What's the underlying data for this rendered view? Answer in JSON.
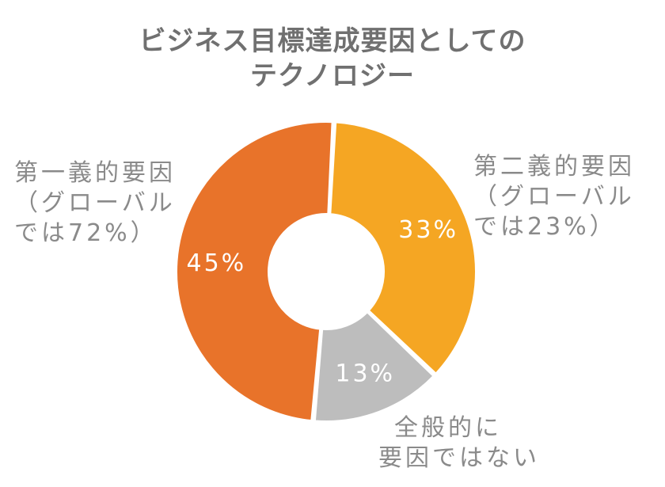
{
  "chart_data": {
    "type": "pie",
    "title_lines": [
      "ビジネス目標達成要因としての",
      "テクノロジー"
    ],
    "slices": [
      {
        "name_lines": [
          "第一義的要因",
          "（グローバル",
          "では72%）"
        ],
        "value": 45,
        "value_label": "45%",
        "color": "#E8732A"
      },
      {
        "name_lines": [
          "第二義的要因",
          "（グローバル",
          "では23%）"
        ],
        "value": 33,
        "value_label": "33%",
        "color": "#F5A623"
      },
      {
        "name_lines": [
          "全般的に",
          "要因ではない"
        ],
        "value": 13,
        "value_label": "13%",
        "color": "#BDBDBD"
      }
    ],
    "legend": "none",
    "donut": true
  }
}
